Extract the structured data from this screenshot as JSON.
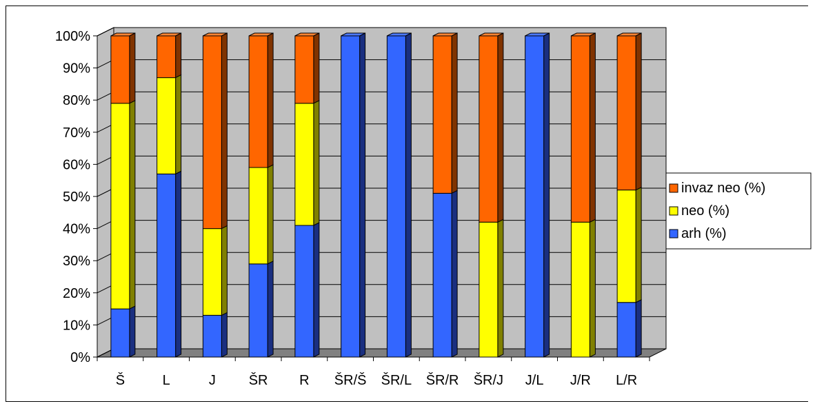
{
  "chart_data": {
    "type": "bar",
    "stacked": true,
    "percent_stacked": true,
    "three_d": true,
    "categories": [
      "Š",
      "L",
      "J",
      "ŠR",
      "R",
      "ŠR/Š",
      "ŠR/L",
      "ŠR/R",
      "ŠR/J",
      "J/L",
      "J/R",
      "L/R"
    ],
    "series": [
      {
        "name": "arh (%)",
        "values": [
          15,
          57,
          13,
          29,
          41,
          100,
          100,
          51,
          0,
          100,
          0,
          17
        ]
      },
      {
        "name": "neo (%)",
        "values": [
          64,
          30,
          27,
          30,
          38,
          0,
          0,
          0,
          42,
          0,
          42,
          35
        ]
      },
      {
        "name": "invaz neo (%)",
        "values": [
          21,
          13,
          60,
          41,
          21,
          0,
          0,
          49,
          58,
          0,
          58,
          48
        ]
      }
    ],
    "ylim": [
      0,
      100
    ],
    "y_ticks": [
      "0%",
      "10%",
      "20%",
      "30%",
      "40%",
      "50%",
      "60%",
      "70%",
      "80%",
      "90%",
      "100%"
    ],
    "grid": true,
    "legend_position": "right",
    "legend_order": [
      "invaz neo (%)",
      "neo (%)",
      "arh (%)"
    ],
    "colors": {
      "arh (%)": {
        "front": "#3366ff",
        "side": "#1a2f80",
        "top": "#4d7aff"
      },
      "neo (%)": {
        "front": "#ffff00",
        "side": "#808000",
        "top": "#ffff66"
      },
      "invaz neo (%)": {
        "front": "#ff6600",
        "side": "#803300",
        "top": "#ff8533"
      },
      "wall": "#c0c0c0",
      "floor": "#808080"
    }
  }
}
